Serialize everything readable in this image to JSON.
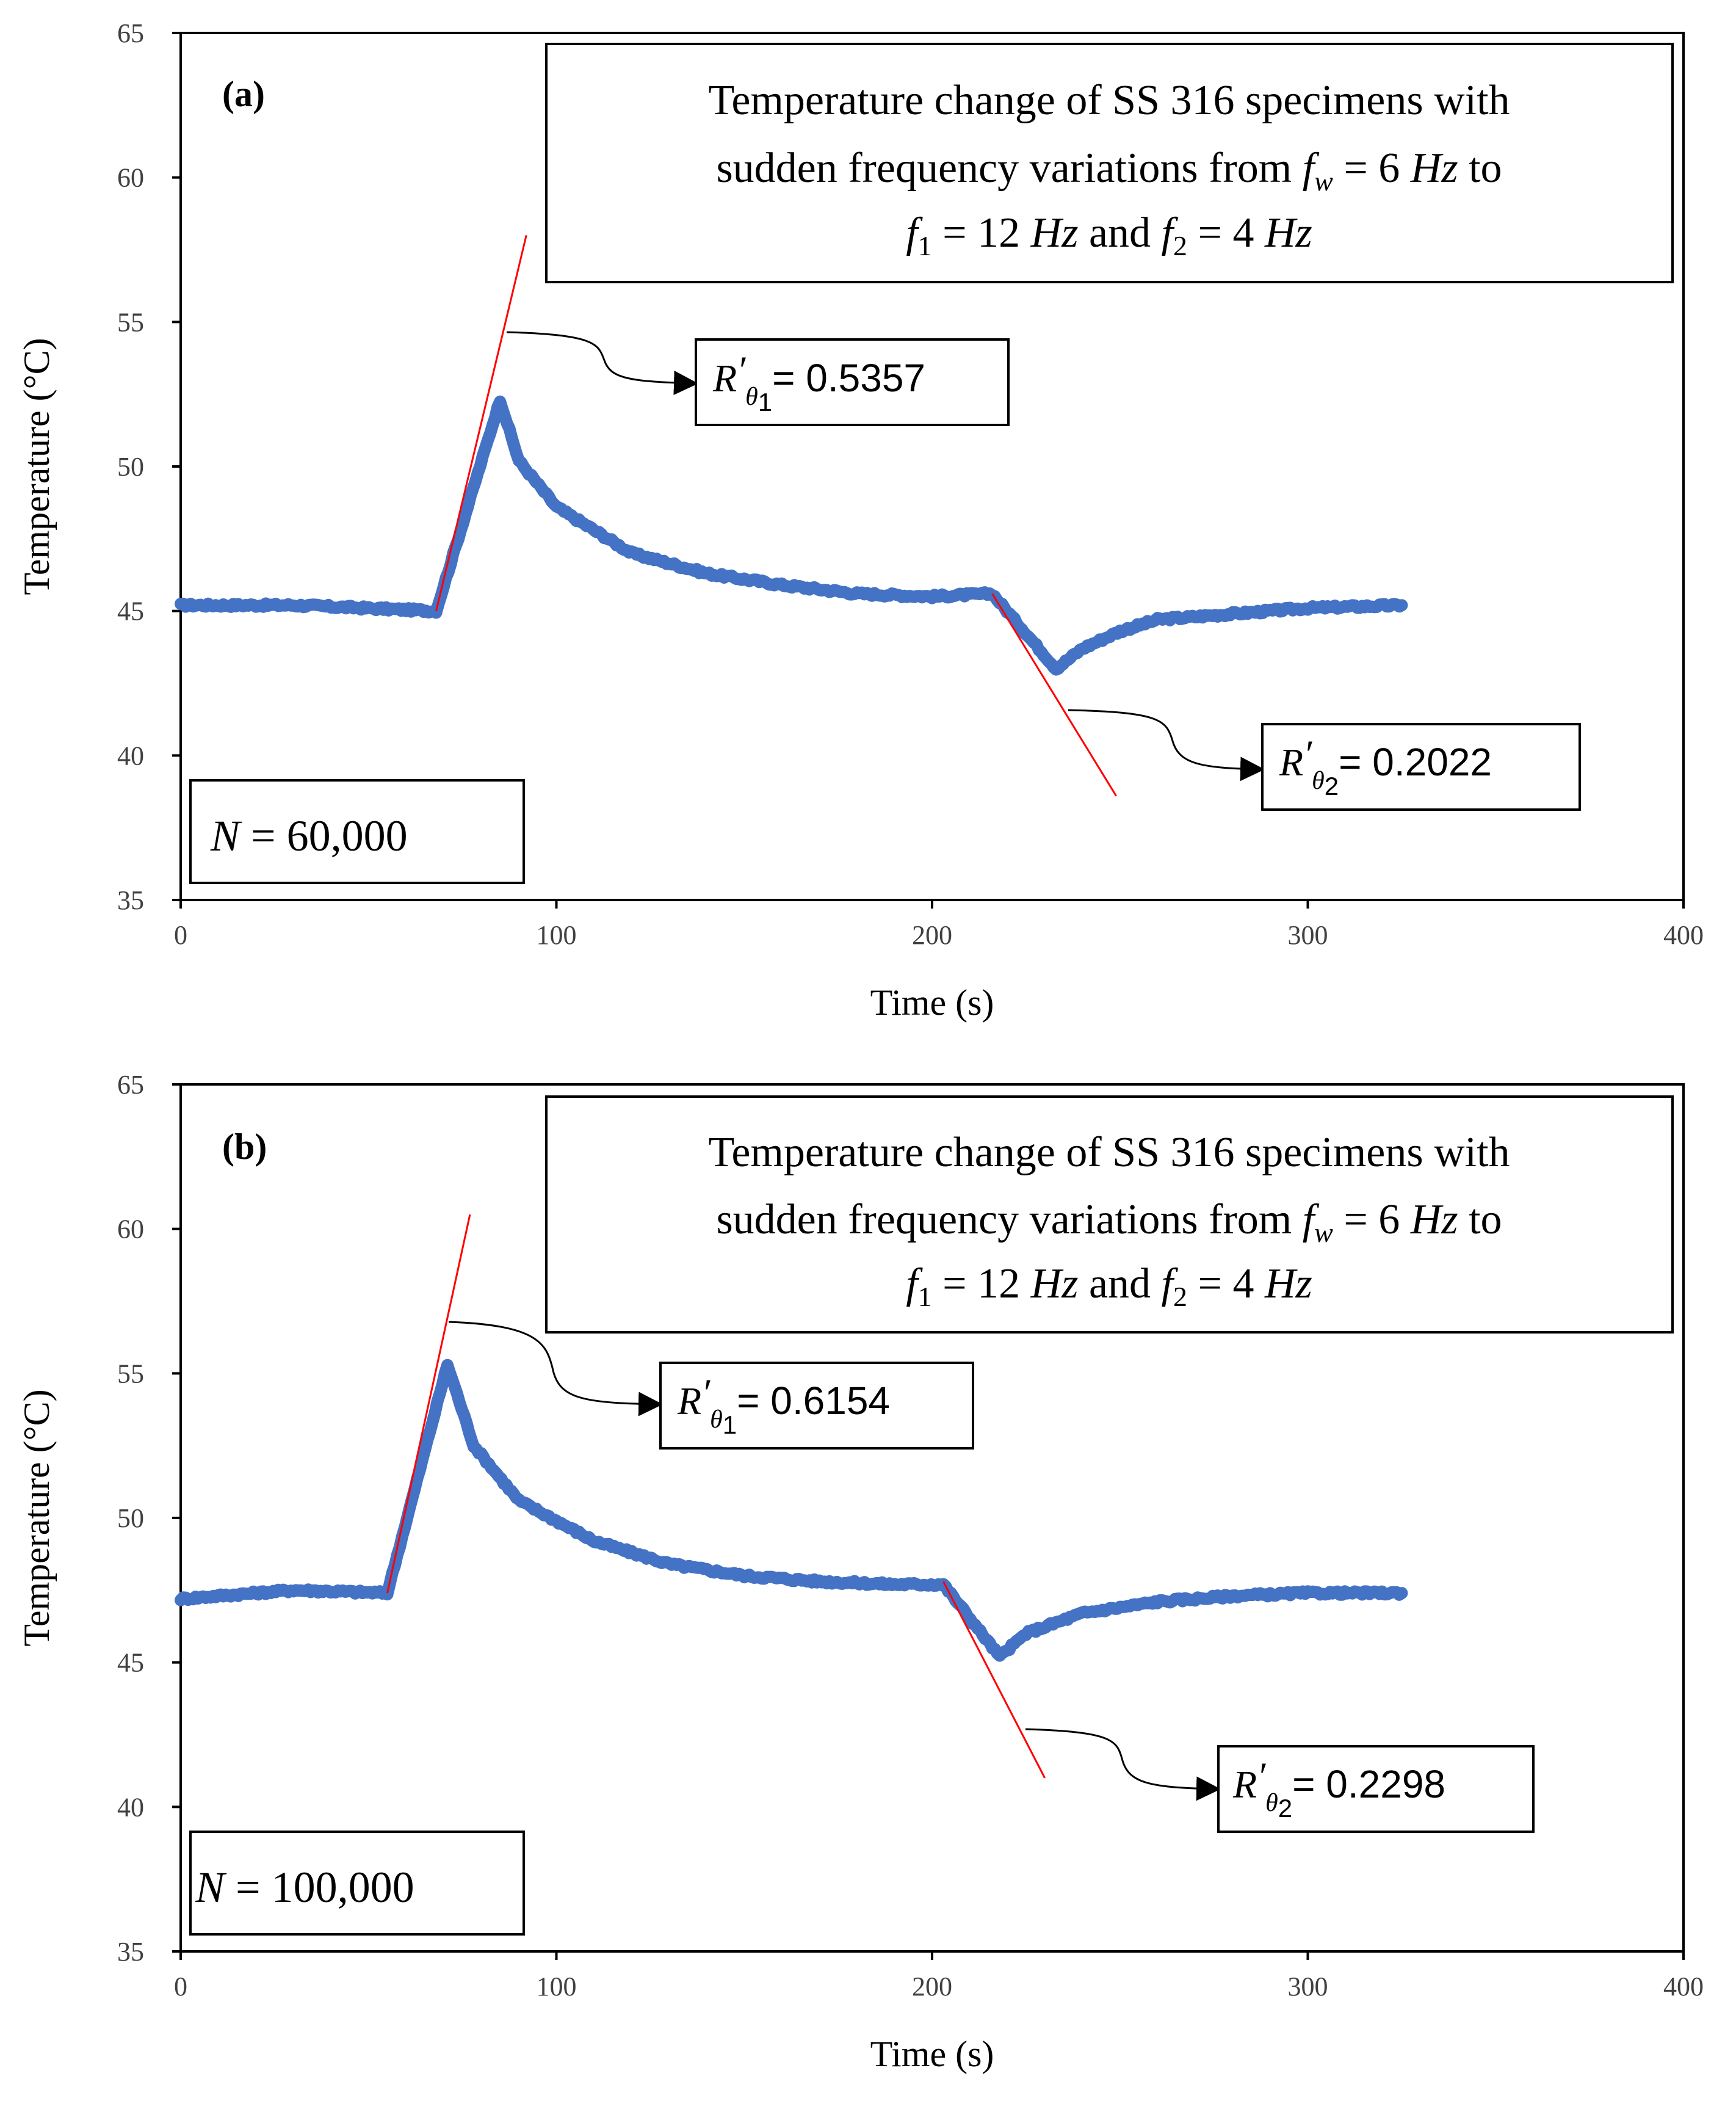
{
  "chart_data": [
    {
      "type": "line",
      "panel_label": "(a)",
      "xlabel": "Time (s)",
      "ylabel": "Temperature (°C)",
      "xlim": [
        0,
        400
      ],
      "ylim": [
        35,
        65
      ],
      "x_ticks": [
        "0",
        "100",
        "200",
        "300",
        "400"
      ],
      "y_ticks": [
        "35",
        "40",
        "45",
        "50",
        "55",
        "60",
        "65"
      ],
      "grid": false,
      "series": [
        {
          "name": "Temperature",
          "color": "#4472c4",
          "x": [
            0,
            30,
            68,
            85,
            90,
            100,
            120,
            140,
            160,
            180,
            200,
            216,
            233,
            240,
            250,
            260,
            280,
            300,
            325
          ],
          "y": [
            45.2,
            45.2,
            45.0,
            52.3,
            50.2,
            48.6,
            47.0,
            46.3,
            45.9,
            45.6,
            45.5,
            45.6,
            43.0,
            43.7,
            44.3,
            44.7,
            44.9,
            45.1,
            45.2
          ]
        }
      ],
      "tangents": [
        {
          "x": [
            68,
            92
          ],
          "y": [
            45.0,
            58.0
          ],
          "color": "#ff0000"
        },
        {
          "x": [
            216,
            249
          ],
          "y": [
            45.6,
            38.6
          ],
          "color": "#ff0000"
        }
      ],
      "title_box": {
        "line1": "Temperature change of SS 316 specimens with",
        "line2_a": "sudden frequency variations from ",
        "line2_f": "f",
        "line2_sub": "w",
        "line2_eq": " = 6 ",
        "line2_hz": "Hz",
        "line2_to": " to",
        "line3_f1": "f",
        "line3_sub1": "1",
        "line3_eq1": " = 12 ",
        "line3_hz1": "Hz",
        "line3_and": " and ",
        "line3_f2": "f",
        "line3_sub2": "2",
        "line3_eq2": " = 4 ",
        "line3_hz2": "Hz"
      },
      "annotations": [
        {
          "symbol": "R",
          "prime": "′",
          "sub": "θ",
          "subsub": "1",
          "text": "= 0.5357"
        },
        {
          "symbol": "R",
          "prime": "′",
          "sub": "θ",
          "subsub": "2",
          "text": "= 0.2022"
        }
      ],
      "n_box": {
        "symbol": "N",
        "text": " = 60,000"
      }
    },
    {
      "type": "line",
      "panel_label": "(b)",
      "xlabel": "Time (s)",
      "ylabel": "Temperature (°C)",
      "xlim": [
        0,
        400
      ],
      "ylim": [
        35,
        65
      ],
      "x_ticks": [
        "0",
        "100",
        "200",
        "300",
        "400"
      ],
      "y_ticks": [
        "35",
        "40",
        "45",
        "50",
        "55",
        "60",
        "65"
      ],
      "grid": false,
      "series": [
        {
          "name": "Temperature",
          "color": "#4472c4",
          "x": [
            0,
            30,
            55,
            71,
            78,
            90,
            110,
            130,
            150,
            170,
            190,
            203,
            218,
            225,
            240,
            260,
            280,
            300,
            325
          ],
          "y": [
            47.2,
            47.5,
            47.4,
            55.3,
            52.5,
            50.6,
            49.2,
            48.4,
            48.0,
            47.8,
            47.7,
            47.7,
            45.2,
            46.0,
            46.7,
            47.1,
            47.3,
            47.4,
            47.4
          ]
        }
      ],
      "tangents": [
        {
          "x": [
            55,
            77
          ],
          "y": [
            47.4,
            60.5
          ],
          "color": "#ff0000"
        },
        {
          "x": [
            203,
            230
          ],
          "y": [
            47.8,
            41.0
          ],
          "color": "#ff0000"
        }
      ],
      "title_box": {
        "line1": "Temperature change of SS 316 specimens with",
        "line2_a": "sudden frequency variations from ",
        "line2_f": "f",
        "line2_sub": "w",
        "line2_eq": " = 6 ",
        "line2_hz": "Hz",
        "line2_to": " to",
        "line3_f1": "f",
        "line3_sub1": "1",
        "line3_eq1": " = 12 ",
        "line3_hz1": "Hz",
        "line3_and": " and ",
        "line3_f2": "f",
        "line3_sub2": "2",
        "line3_eq2": " = 4 ",
        "line3_hz2": "Hz"
      },
      "annotations": [
        {
          "symbol": "R",
          "prime": "′",
          "sub": "θ",
          "subsub": "1",
          "text": "= 0.6154"
        },
        {
          "symbol": "R",
          "prime": "′",
          "sub": "θ",
          "subsub": "2",
          "text": "= 0.2298"
        }
      ],
      "n_box": {
        "symbol": "N",
        "text": " = 100,000"
      }
    }
  ]
}
